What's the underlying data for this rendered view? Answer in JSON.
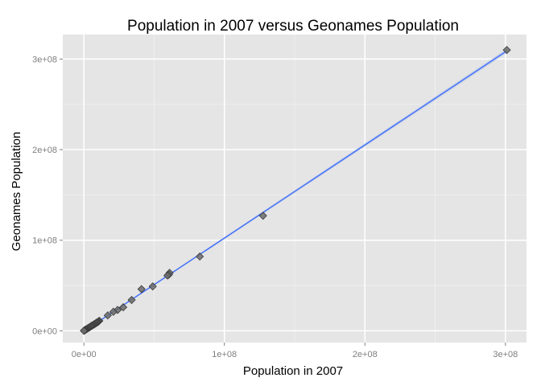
{
  "chart_data": {
    "type": "scatter",
    "title": "Population in 2007 versus Geonames Population",
    "xlabel": "Population in 2007",
    "ylabel": "Geonames Population",
    "xlim": [
      -15000000,
      315000000
    ],
    "ylim": [
      -13000000,
      327000000
    ],
    "x_ticks": [
      {
        "value": 0,
        "label": "0e+00"
      },
      {
        "value": 100000000,
        "label": "1e+08"
      },
      {
        "value": 200000000,
        "label": "2e+08"
      },
      {
        "value": 300000000,
        "label": "3e+08"
      }
    ],
    "y_ticks": [
      {
        "value": 0,
        "label": "0e+00"
      },
      {
        "value": 100000000,
        "label": "1e+08"
      },
      {
        "value": 200000000,
        "label": "2e+08"
      },
      {
        "value": 300000000,
        "label": "3e+08"
      }
    ],
    "grid": true,
    "colors": {
      "panel": "#e5e5e5",
      "grid_major": "#ffffff",
      "grid_minor": "#f2f2f2",
      "point_fill": "#6b6b6b",
      "point_stroke": "#3a3a3a",
      "fit_line": "#3366ff",
      "fit_band": "#b3c3e6"
    },
    "fit_line": {
      "x": [
        0,
        301000000
      ],
      "y": [
        -500000,
        309000000
      ]
    },
    "x": [
      301000000,
      127500000,
      82500000,
      61000000,
      60500000,
      59500000,
      49000000,
      41000000,
      34000000,
      28000000,
      24000000,
      21000000,
      17000000,
      11000000,
      10500000,
      10000000,
      9500000,
      9000000,
      8500000,
      8000000,
      7500000,
      7000000,
      6500000,
      6000000,
      5500000,
      5000000,
      4500000,
      4000000,
      3500000,
      3000000,
      2500000,
      2000000,
      1500000,
      1000000,
      700000,
      500000,
      300000,
      200000,
      100000,
      50000
    ],
    "y": [
      310000000,
      127000000,
      82000000,
      64000000,
      62000000,
      61000000,
      49000000,
      46000000,
      34000000,
      26000000,
      23000000,
      21000000,
      17000000,
      11000000,
      10500000,
      9800000,
      9300000,
      9000000,
      8400000,
      7800000,
      7300000,
      6900000,
      6400000,
      5900000,
      5500000,
      5000000,
      4400000,
      3900000,
      3400000,
      3000000,
      2500000,
      1900000,
      1500000,
      1000000,
      700000,
      500000,
      300000,
      200000,
      100000,
      50000
    ]
  }
}
